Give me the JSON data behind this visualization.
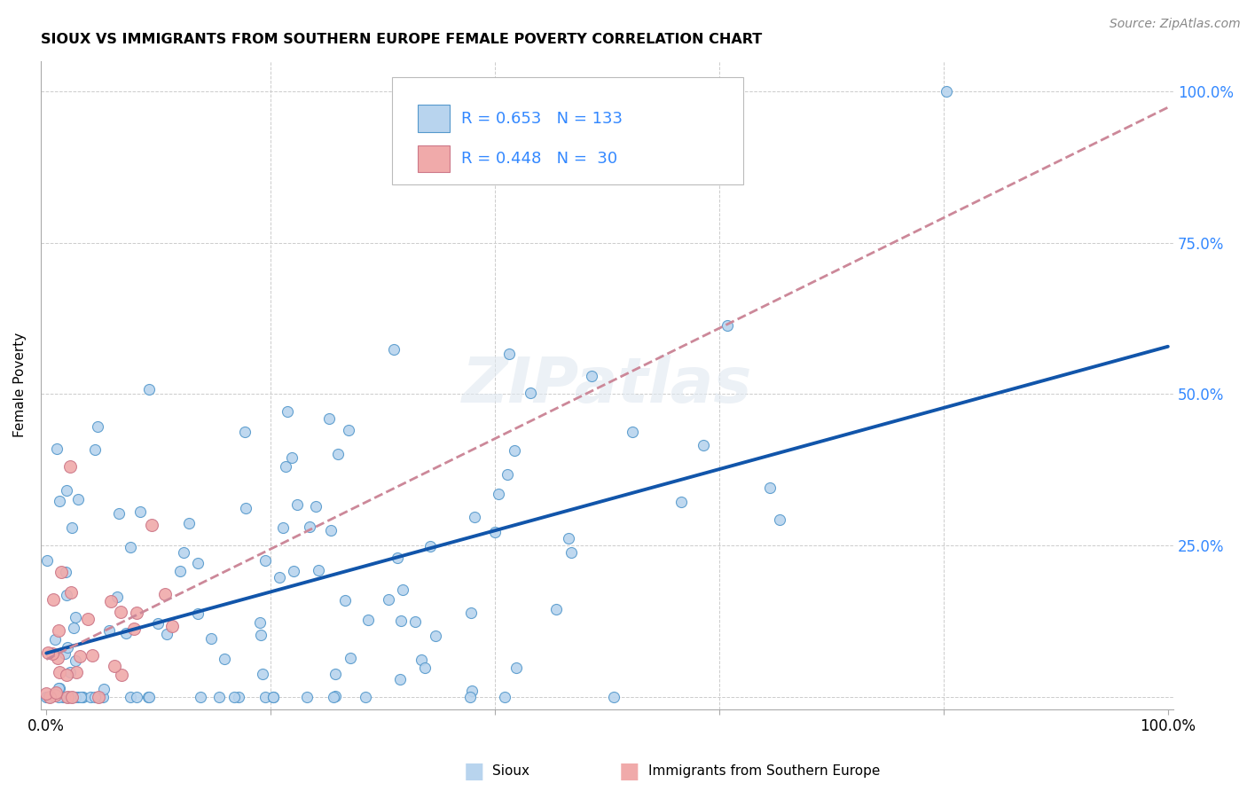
{
  "title": "SIOUX VS IMMIGRANTS FROM SOUTHERN EUROPE FEMALE POVERTY CORRELATION CHART",
  "source": "Source: ZipAtlas.com",
  "ylabel": "Female Poverty",
  "color_sioux_fill": "#b8d4ee",
  "color_sioux_edge": "#5599cc",
  "color_immig_fill": "#f0aaaa",
  "color_immig_edge": "#cc7788",
  "color_line_sioux": "#1155aa",
  "color_line_immig": "#cc8899",
  "color_grid": "#cccccc",
  "watermark_color": "#dddddd",
  "legend_edge": "#bbbbbb",
  "ytick_color": "#3388ff",
  "xtick_color": "#000000",
  "title_color": "#000000",
  "source_color": "#888888"
}
